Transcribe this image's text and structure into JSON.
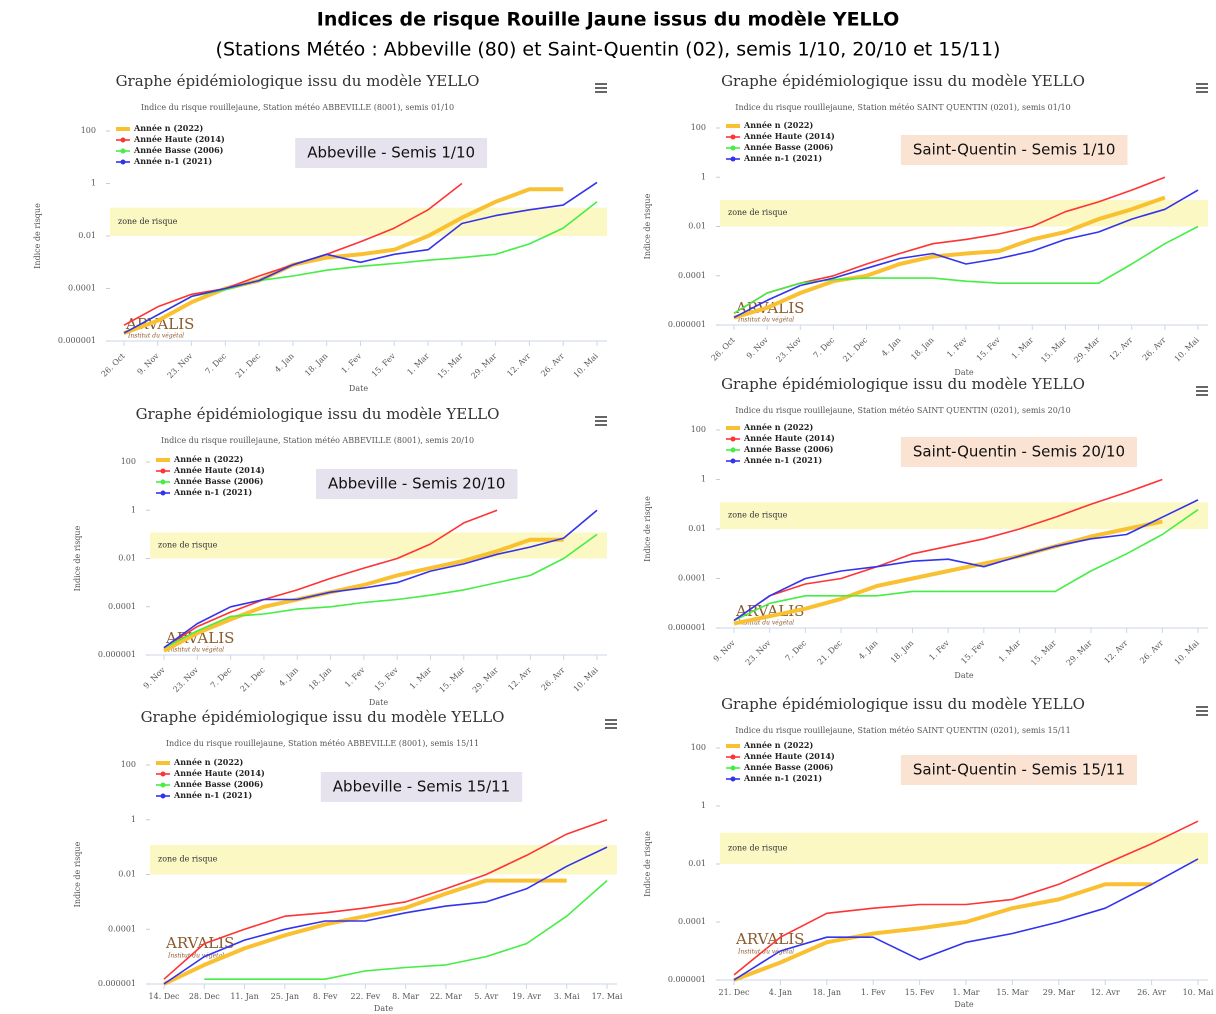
{
  "title": "Indices de risque Rouille Jaune issus du modèle YELLO",
  "subtitle": "(Stations Météo : Abbeville (80) et Saint-Quentin (02), semis 1/10, 20/10 et 15/11)",
  "logo": {
    "name": "ARVALIS",
    "tagline": "Institut du végétal"
  },
  "chart_data": [
    {
      "type": "line",
      "title": "Graphe épidémiologique issu du modèle YELLO",
      "subtitle": "Indice du risque rouillejaune, Station météo ABBEVILLE (8001), semis 01/10",
      "annotation": "Abbeville - Semis 1/10",
      "annotation_color": "#e6e2ee",
      "x_label": "Date",
      "y_label": "Indice de risque",
      "log_y": true,
      "ylim": [
        1e-06,
        100
      ],
      "yticks": [
        1e-06,
        0.0001,
        0.01,
        1,
        100
      ],
      "zone": {
        "label": "zone de risque",
        "range": [
          0.01,
          0.12
        ]
      },
      "categories": [
        "26. Oct",
        "9. Nov",
        "23. Nov",
        "7. Dec",
        "21. Dec",
        "4. Jan",
        "18. Jan",
        "1. Fev",
        "15. Fev",
        "1. Mar",
        "15. Mar",
        "29. Mar",
        "12. Avr",
        "26. Avr",
        "10. Mai"
      ],
      "series": [
        {
          "name": "Année n (2022)",
          "color": "#f9c132",
          "values": [
            2e-06,
            6e-06,
            3e-05,
            0.0001,
            0.0002,
            0.0008,
            0.0015,
            0.002,
            0.003,
            0.01,
            0.05,
            0.2,
            0.6,
            0.6,
            null
          ]
        },
        {
          "name": "Année Haute (2014)",
          "color": "#ff3333",
          "values": [
            4e-06,
            2e-05,
            6e-05,
            0.0001,
            0.0003,
            0.0008,
            0.002,
            0.006,
            0.02,
            0.1,
            1,
            null,
            null,
            null,
            null
          ]
        },
        {
          "name": "Année Basse (2006)",
          "color": "#44ee44",
          "values": [
            2e-06,
            1e-05,
            5e-05,
            9e-05,
            0.0002,
            0.0003,
            0.0005,
            0.0007,
            0.0009,
            0.0012,
            0.0015,
            0.002,
            0.005,
            0.02,
            0.2
          ]
        },
        {
          "name": "Année n-1 (2021)",
          "color": "#3333ee",
          "values": [
            2e-06,
            1e-05,
            5e-05,
            0.0001,
            0.0002,
            0.0008,
            0.002,
            0.001,
            0.002,
            0.003,
            0.03,
            0.06,
            0.1,
            0.15,
            1.1
          ]
        }
      ]
    },
    {
      "type": "line",
      "title": "Graphe épidémiologique issu du modèle YELLO",
      "subtitle": "Indice du risque rouillejaune, Station météo SAINT QUENTIN (0201), semis 01/10",
      "annotation": "Saint-Quentin - Semis 1/10",
      "annotation_color": "#fbe3d3",
      "x_label": "Date",
      "y_label": "Indice de risque",
      "log_y": true,
      "ylim": [
        1e-06,
        100
      ],
      "yticks": [
        1e-06,
        0.0001,
        0.01,
        1,
        100
      ],
      "zone": {
        "label": "zone de risque",
        "range": [
          0.01,
          0.12
        ]
      },
      "categories": [
        "26. Oct",
        "9. Nov",
        "23. Nov",
        "7. Dec",
        "21. Dec",
        "4. Jan",
        "18. Jan",
        "1. Fev",
        "15. Fev",
        "1. Mar",
        "15. Mar",
        "29. Mar",
        "12. Avr",
        "26. Avr",
        "10. Mai"
      ],
      "series": [
        {
          "name": "Année n (2022)",
          "color": "#f9c132",
          "values": [
            2e-06,
            5e-06,
            2e-05,
            6e-05,
            0.0001,
            0.0003,
            0.0006,
            0.0008,
            0.001,
            0.003,
            0.006,
            0.02,
            0.05,
            0.15,
            null
          ]
        },
        {
          "name": "Année Haute (2014)",
          "color": "#ff3333",
          "values": [
            3e-06,
            2e-05,
            5e-05,
            0.0001,
            0.0003,
            0.0008,
            0.002,
            0.003,
            0.005,
            0.01,
            0.04,
            0.1,
            0.3,
            1,
            null
          ]
        },
        {
          "name": "Année Basse (2006)",
          "color": "#44ee44",
          "values": [
            3e-06,
            2e-05,
            5e-05,
            7e-05,
            8e-05,
            8e-05,
            8e-05,
            6e-05,
            5e-05,
            5e-05,
            5e-05,
            5e-05,
            0.0003,
            0.002,
            0.01
          ]
        },
        {
          "name": "Année n-1 (2021)",
          "color": "#3333ee",
          "values": [
            2e-06,
            1e-05,
            4e-05,
            8e-05,
            0.0002,
            0.0005,
            0.0008,
            0.0003,
            0.0005,
            0.001,
            0.003,
            0.006,
            0.02,
            0.05,
            0.3
          ]
        }
      ]
    },
    {
      "type": "line",
      "title": "Graphe épidémiologique issu du modèle YELLO",
      "subtitle": "Indice du risque rouillejaune, Station météo ABBEVILLE (8001), semis 20/10",
      "annotation": "Abbeville - Semis 20/10",
      "annotation_color": "#e6e2ee",
      "x_label": "Date",
      "y_label": "Indice de risque",
      "log_y": true,
      "ylim": [
        1e-06,
        100
      ],
      "yticks": [
        1e-06,
        0.0001,
        0.01,
        1,
        100
      ],
      "zone": {
        "label": "zone de risque",
        "range": [
          0.01,
          0.12
        ]
      },
      "categories": [
        "9. Nov",
        "23. Nov",
        "7. Dec",
        "21. Dec",
        "4. Jan",
        "18. Jan",
        "1. Fev",
        "15. Fev",
        "1. Mar",
        "15. Mar",
        "29. Mar",
        "12. Avr",
        "26. Avr",
        "10. Mai"
      ],
      "series": [
        {
          "name": "Année n (2022)",
          "color": "#f9c132",
          "values": [
            1.5e-06,
            8e-06,
            3e-05,
            0.0001,
            0.0002,
            0.0004,
            0.0008,
            0.002,
            0.004,
            0.008,
            0.02,
            0.06,
            0.06,
            null
          ]
        },
        {
          "name": "Année Haute (2014)",
          "color": "#ff3333",
          "values": [
            2e-06,
            1.5e-05,
            6e-05,
            0.0002,
            0.0005,
            0.0015,
            0.004,
            0.01,
            0.04,
            0.3,
            1,
            null,
            null,
            null
          ]
        },
        {
          "name": "Année Basse (2006)",
          "color": "#44ee44",
          "values": [
            2e-06,
            1e-05,
            4e-05,
            5e-05,
            8e-05,
            0.0001,
            0.00015,
            0.0002,
            0.0003,
            0.0005,
            0.001,
            0.002,
            0.01,
            0.1
          ]
        },
        {
          "name": "Année n-1 (2021)",
          "color": "#3333ee",
          "values": [
            2e-06,
            2e-05,
            0.0001,
            0.0002,
            0.0002,
            0.0004,
            0.0006,
            0.001,
            0.003,
            0.006,
            0.015,
            0.03,
            0.07,
            1
          ]
        }
      ]
    },
    {
      "type": "line",
      "title": "Graphe épidémiologique issu du modèle YELLO",
      "subtitle": "Indice du risque rouillejaune, Station météo SAINT QUENTIN (0201), semis 20/10",
      "annotation": "Saint-Quentin - Semis 20/10",
      "annotation_color": "#fbe3d3",
      "x_label": "Date",
      "y_label": "Indice de risque",
      "log_y": true,
      "ylim": [
        1e-06,
        100
      ],
      "yticks": [
        1e-06,
        0.0001,
        0.01,
        1,
        100
      ],
      "zone": {
        "label": "zone de risque",
        "range": [
          0.01,
          0.12
        ]
      },
      "categories": [
        "9. Nov",
        "23. Nov",
        "7. Dec",
        "21. Dec",
        "4. Jan",
        "18. Jan",
        "1. Fev",
        "15. Fev",
        "1. Mar",
        "15. Mar",
        "29. Mar",
        "12. Avr",
        "26. Avr",
        "10. Mai"
      ],
      "series": [
        {
          "name": "Année n (2022)",
          "color": "#f9c132",
          "values": [
            1.5e-06,
            3e-06,
            6e-06,
            1.5e-05,
            5e-05,
            0.0001,
            0.0002,
            0.0004,
            0.0008,
            0.002,
            0.005,
            0.01,
            0.02,
            null
          ]
        },
        {
          "name": "Année Haute (2014)",
          "color": "#ff3333",
          "values": [
            2e-06,
            2e-05,
            6e-05,
            0.0001,
            0.0003,
            0.001,
            0.002,
            0.004,
            0.01,
            0.03,
            0.1,
            0.3,
            1,
            null
          ]
        },
        {
          "name": "Année Basse (2006)",
          "color": "#44ee44",
          "values": [
            2e-06,
            1e-05,
            2e-05,
            2e-05,
            2e-05,
            3e-05,
            3e-05,
            3e-05,
            3e-05,
            3e-05,
            0.0002,
            0.001,
            0.006,
            0.06
          ]
        },
        {
          "name": "Année n-1 (2021)",
          "color": "#3333ee",
          "values": [
            2e-06,
            2e-05,
            0.0001,
            0.0002,
            0.0003,
            0.0005,
            0.0006,
            0.0003,
            0.0008,
            0.002,
            0.004,
            0.006,
            0.03,
            0.15
          ]
        }
      ]
    },
    {
      "type": "line",
      "title": "Graphe épidémiologique issu du modèle YELLO",
      "subtitle": "Indice du risque rouillejaune, Station météo ABBEVILLE (8001), semis 15/11",
      "annotation": "Abbeville - Semis 15/11",
      "annotation_color": "#e6e2ee",
      "x_label": "Date",
      "y_label": "Indice de risque",
      "log_y": true,
      "ylim": [
        1e-06,
        100
      ],
      "yticks": [
        1e-06,
        0.0001,
        0.01,
        1,
        100
      ],
      "zone": {
        "label": "zone de risque",
        "range": [
          0.01,
          0.12
        ]
      },
      "categories": [
        "14. Dec",
        "28. Dec",
        "11. Jan",
        "25. Jan",
        "8. Fev",
        "22. Fev",
        "8. Mar",
        "22. Mar",
        "5. Avr",
        "19. Avr",
        "3. Mai",
        "17. Mai"
      ],
      "series": [
        {
          "name": "Année n (2022)",
          "color": "#f9c132",
          "values": [
            1e-06,
            5e-06,
            2e-05,
            6e-05,
            0.00015,
            0.0003,
            0.0006,
            0.002,
            0.006,
            0.006,
            0.006,
            null
          ]
        },
        {
          "name": "Année Haute (2014)",
          "color": "#ff3333",
          "values": [
            1.5e-06,
            3e-05,
            0.0001,
            0.0003,
            0.0004,
            0.0006,
            0.001,
            0.003,
            0.01,
            0.05,
            0.3,
            1
          ]
        },
        {
          "name": "Année Basse (2006)",
          "color": "#44ee44",
          "values": [
            null,
            1.5e-06,
            1.5e-06,
            1.5e-06,
            1.5e-06,
            3e-06,
            4e-06,
            5e-06,
            1e-05,
            3e-05,
            0.0003,
            0.006
          ]
        },
        {
          "name": "Année n-1 (2021)",
          "color": "#3333ee",
          "values": [
            1e-06,
            1e-05,
            4e-05,
            0.0001,
            0.0002,
            0.0002,
            0.0004,
            0.0007,
            0.001,
            0.003,
            0.02,
            0.1
          ]
        }
      ]
    },
    {
      "type": "line",
      "title": "Graphe épidémiologique issu du modèle YELLO",
      "subtitle": "Indice du risque rouillejaune, Station météo SAINT QUENTIN (0201), semis 15/11",
      "annotation": "Saint-Quentin - Semis 15/11",
      "annotation_color": "#fbe3d3",
      "x_label": "Date",
      "y_label": "Indice de risque",
      "log_y": true,
      "ylim": [
        1e-06,
        100
      ],
      "yticks": [
        1e-06,
        0.0001,
        0.01,
        1,
        100
      ],
      "zone": {
        "label": "zone de risque",
        "range": [
          0.01,
          0.12
        ]
      },
      "categories": [
        "21. Dec",
        "4. Jan",
        "18. Jan",
        "1. Fev",
        "15. Fev",
        "1. Mar",
        "15. Mar",
        "29. Mar",
        "12. Avr",
        "26. Avr",
        "10. Mai"
      ],
      "series": [
        {
          "name": "Année n (2022)",
          "color": "#f9c132",
          "values": [
            1e-06,
            4e-06,
            2e-05,
            4e-05,
            6e-05,
            0.0001,
            0.0003,
            0.0006,
            0.002,
            0.002,
            null
          ]
        },
        {
          "name": "Année Haute (2014)",
          "color": "#ff3333",
          "values": [
            1.5e-06,
            3e-05,
            0.0002,
            0.0003,
            0.0004,
            0.0004,
            0.0006,
            0.002,
            0.01,
            0.05,
            0.3
          ]
        },
        {
          "name": "Année Basse (2006)",
          "color": "#44ee44",
          "values": [
            null,
            null,
            null,
            null,
            null,
            null,
            null,
            null,
            null,
            null,
            null
          ]
        },
        {
          "name": "Année n-1 (2021)",
          "color": "#3333ee",
          "values": [
            1e-06,
            1e-05,
            3e-05,
            3e-05,
            5e-06,
            2e-05,
            4e-05,
            0.0001,
            0.0003,
            0.002,
            0.015
          ]
        }
      ]
    }
  ]
}
